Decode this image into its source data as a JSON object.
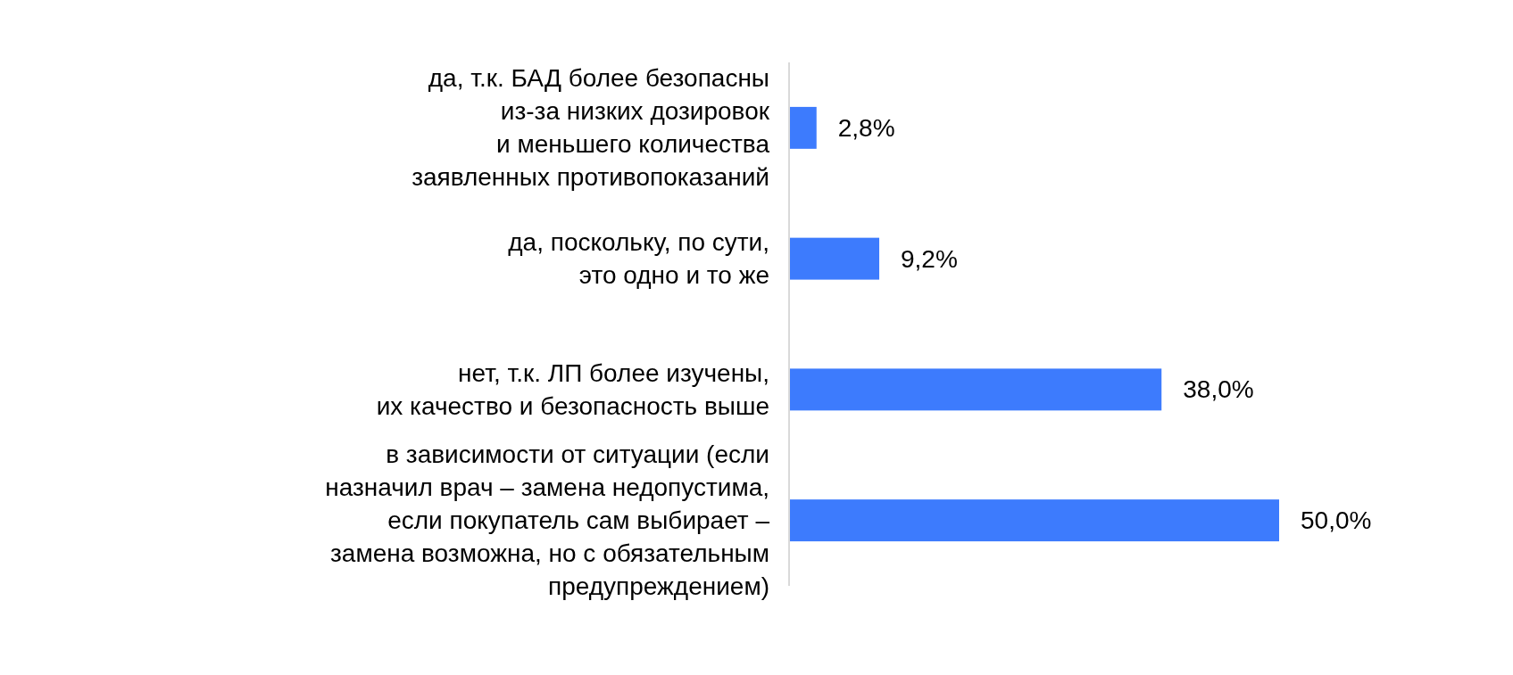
{
  "chart_data": {
    "type": "bar",
    "orientation": "horizontal",
    "categories": [
      "да, т.к. БАД более безопасны\nиз-за низких дозировок\nи меньшего количества\nзаявленных противопоказаний",
      "да, поскольку, по сути,\nэто одно и то же",
      "нет, т.к. ЛП более изучены,\nих качество и безопасность выше",
      "в зависимости от ситуации (если\nназначил врач – замена недопустима,\nесли покупатель сам выбирает –\nзамена возможна, но с обязательным\nпредупреждением)"
    ],
    "values": [
      2.8,
      9.2,
      38.0,
      50.0
    ],
    "value_labels": [
      "2,8%",
      "9,2%",
      "38,0%",
      "50,0%"
    ],
    "color": "#3d7bfd"
  }
}
